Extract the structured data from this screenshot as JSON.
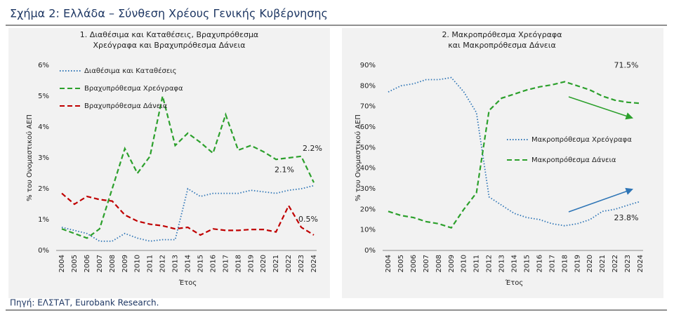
{
  "title": "Σχήμα 2: Ελλάδα – Σύνθεση Χρέους Γενικής Κυβέρνησης",
  "source": "Πηγή: ΕΛΣΤΑΤ, Eurobank Research.",
  "chart_data": [
    {
      "type": "line",
      "title": [
        "1. Διαθέσιμα και Καταθέσεις, Βραχυπρόθεσμα",
        "Χρεόγραφα και Βραχυπρόθεσμα Δάνεια"
      ],
      "xlabel": "Έτος",
      "ylabel": "% του Ονομαστικού ΑΕΠ",
      "categories": [
        "2004",
        "2005",
        "2006",
        "2007",
        "2008",
        "2009",
        "2010",
        "2011",
        "2012",
        "2013",
        "2014",
        "2015",
        "2016",
        "2017",
        "2018",
        "2019",
        "2020",
        "2021",
        "2022",
        "2023",
        "2024"
      ],
      "ylim": [
        0,
        6
      ],
      "yticks": [
        {
          "value": 0,
          "label": "0%"
        },
        {
          "value": 1,
          "label": "1%"
        },
        {
          "value": 2,
          "label": "2%"
        },
        {
          "value": 3,
          "label": "3%"
        },
        {
          "value": 4,
          "label": "4%"
        },
        {
          "value": 5,
          "label": "5%"
        },
        {
          "value": 6,
          "label": "6%"
        }
      ],
      "grid": false,
      "legend": "upper left",
      "series": [
        {
          "name": "Διαθέσιμα και Καταθέσεις",
          "color": "#2e75b6",
          "dash": "dotted",
          "values": [
            0.75,
            0.65,
            0.55,
            0.3,
            0.3,
            0.55,
            0.4,
            0.3,
            0.35,
            0.35,
            2.0,
            1.75,
            1.85,
            1.85,
            1.85,
            1.95,
            1.9,
            1.85,
            1.95,
            2.0,
            2.1
          ],
          "value_labels": [
            null,
            null,
            null,
            null,
            null,
            null,
            null,
            null,
            null,
            null,
            null,
            null,
            null,
            null,
            null,
            null,
            null,
            null,
            null,
            null,
            "2.1%"
          ]
        },
        {
          "name": "Βραχυπρόθεσμα Χρεόγραφα",
          "color": "#2ca02c",
          "dash": "dashed",
          "values": [
            0.7,
            0.55,
            0.4,
            0.7,
            2.0,
            3.3,
            2.5,
            3.05,
            5.0,
            3.4,
            3.8,
            3.5,
            3.15,
            4.4,
            3.25,
            3.4,
            3.2,
            2.95,
            3.0,
            3.05,
            2.2
          ],
          "value_labels": [
            null,
            null,
            null,
            null,
            null,
            null,
            null,
            null,
            null,
            null,
            null,
            null,
            null,
            null,
            null,
            null,
            null,
            null,
            null,
            null,
            "2.2%"
          ]
        },
        {
          "name": "Βραχυπρόθεσμα Δάνεια",
          "color": "#c00000",
          "dash": "dashed",
          "values": [
            1.85,
            1.5,
            1.75,
            1.65,
            1.6,
            1.15,
            0.95,
            0.85,
            0.8,
            0.7,
            0.75,
            0.5,
            0.7,
            0.65,
            0.65,
            0.68,
            0.68,
            0.6,
            1.45,
            0.75,
            0.5
          ],
          "value_labels": [
            null,
            null,
            null,
            null,
            null,
            null,
            null,
            null,
            null,
            null,
            null,
            null,
            null,
            null,
            null,
            null,
            null,
            null,
            null,
            null,
            "0.5%"
          ]
        }
      ]
    },
    {
      "type": "line",
      "title": [
        "2. Μακροπρόθεσμα Χρεόγραφα",
        "και Μακροπρόθεσμα Δάνεια"
      ],
      "xlabel": "Έτος",
      "ylabel": "% του Ονομαστικού ΑΕΠ",
      "categories": [
        "2004",
        "2005",
        "2006",
        "2007",
        "2008",
        "2009",
        "2010",
        "2011",
        "2012",
        "2013",
        "2014",
        "2015",
        "2016",
        "2017",
        "2018",
        "2019",
        "2020",
        "2021",
        "2022",
        "2023",
        "2024"
      ],
      "ylim": [
        0,
        90
      ],
      "yticks": [
        {
          "value": 0,
          "label": "0%"
        },
        {
          "value": 10,
          "label": "10%"
        },
        {
          "value": 20,
          "label": "20%"
        },
        {
          "value": 30,
          "label": "30%"
        },
        {
          "value": 40,
          "label": "40%"
        },
        {
          "value": 50,
          "label": "50%"
        },
        {
          "value": 60,
          "label": "60%"
        },
        {
          "value": 70,
          "label": "70%"
        },
        {
          "value": 80,
          "label": "80%"
        },
        {
          "value": 90,
          "label": "90%"
        }
      ],
      "grid": false,
      "legend": "center right",
      "series": [
        {
          "name": "Μακροπρόθεσμα Χρεόγραφα",
          "color": "#2e75b6",
          "dash": "dotted",
          "values": [
            77,
            80,
            81,
            83,
            83,
            84,
            77,
            67,
            26,
            22,
            18,
            16,
            15,
            13,
            12,
            13,
            15,
            19,
            20,
            22,
            23.8
          ],
          "value_labels": [
            null,
            null,
            null,
            null,
            null,
            null,
            null,
            null,
            null,
            null,
            null,
            null,
            null,
            null,
            null,
            null,
            null,
            null,
            null,
            null,
            "23.8%"
          ]
        },
        {
          "name": "Μακροπρόθεσμα Δάνεια",
          "color": "#2ca02c",
          "dash": "dashed",
          "values": [
            19,
            17,
            16,
            14,
            13,
            11,
            20,
            28,
            68,
            74,
            76,
            78,
            79.5,
            80.5,
            82,
            80,
            78,
            75,
            73,
            72,
            71.5
          ],
          "value_labels": [
            null,
            null,
            null,
            null,
            null,
            null,
            null,
            null,
            null,
            null,
            null,
            null,
            null,
            null,
            null,
            null,
            null,
            null,
            null,
            null,
            "71.5%"
          ]
        }
      ]
    }
  ]
}
